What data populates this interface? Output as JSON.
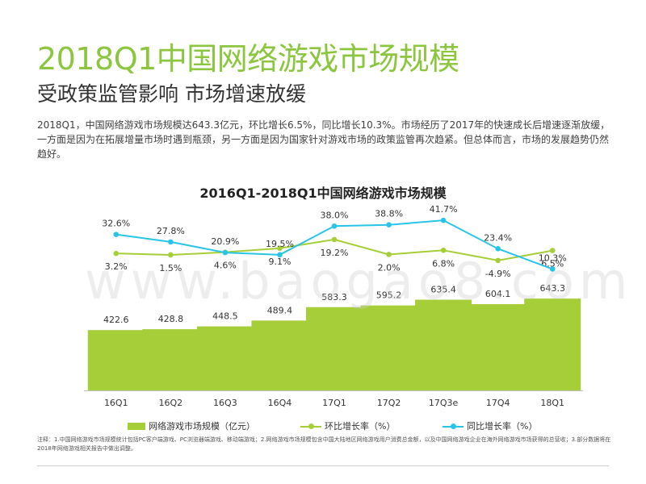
{
  "header": {
    "title": "2018Q1中国网络游戏市场规模",
    "subtitle": "受政策监管影响 市场增速放缓",
    "description": "2018Q1，中国网络游戏市场规模达643.3亿元，环比增长6.5%，同比增长10.3%。市场经历了2017年的快速成长后增速逐渐放缓，一方面是因为在拓展增量市场时遇到瓶颈，另一方面是因为国家针对游戏市场的政策监管再次趋紧。但总体而言，市场的发展趋势仍然趋好。"
  },
  "watermark": "www.baogao8.com",
  "chart_data": {
    "type": "bar",
    "title": "2016Q1-2018Q1中国网络游戏市场规模",
    "categories": [
      "16Q1",
      "16Q2",
      "16Q3",
      "16Q4",
      "17Q1",
      "17Q2",
      "17Q3e",
      "17Q4",
      "18Q1"
    ],
    "series": [
      {
        "name": "网络游戏市场规模（亿元）",
        "type": "bar",
        "values": [
          422.6,
          428.8,
          448.5,
          489.4,
          583.3,
          595.2,
          635.4,
          604.1,
          643.3
        ],
        "labels": [
          "422.6",
          "428.8",
          "448.5",
          "489.4",
          "583.3",
          "595.2",
          "635.4",
          "604.1",
          "643.3"
        ],
        "color": "#a6ce39"
      },
      {
        "name": "环比增长率（%）",
        "type": "line",
        "values": [
          3.2,
          1.5,
          4.6,
          9.1,
          19.2,
          2.0,
          6.8,
          -4.9,
          6.5
        ],
        "labels": [
          "3.2%",
          "1.5%",
          "4.6%",
          "9.1%",
          "19.2%",
          "2.0%",
          "6.8%",
          "-4.9%",
          "6.5%"
        ],
        "color": "#a6ce39"
      },
      {
        "name": "同比增长率（%）",
        "type": "line",
        "values": [
          32.6,
          27.8,
          20.9,
          19.5,
          38.0,
          38.8,
          41.7,
          23.4,
          10.3
        ],
        "labels": [
          "32.6%",
          "27.8%",
          "20.9%",
          "19.5%",
          "38.0%",
          "38.8%",
          "41.7%",
          "23.4%",
          "10.3%"
        ],
        "color": "#29c5e6"
      }
    ],
    "xlabel": "",
    "ylabel": "",
    "grid": false,
    "legend": "bottom"
  },
  "footnote": "注释：1.中国网络游戏市场规模统计包括PC客户端游戏、PC浏览器端游戏、移动端游戏；2.网络游戏市场规模包含中国大陆地区网络游戏用户消费总金额，以及中国网络游戏企业在海外网络游戏市场获得的总营收；3.部分数据将在2018年网络游戏相关报告中做出调整。"
}
